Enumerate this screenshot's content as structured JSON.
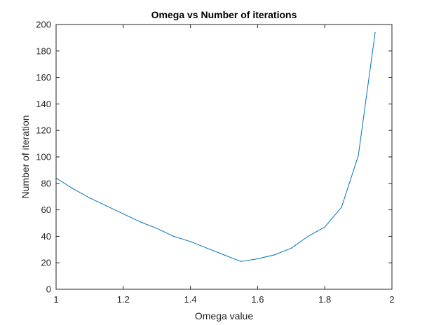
{
  "chart_data": {
    "type": "line",
    "title": "Omega vs Number of iterations",
    "xlabel": "Omega value",
    "ylabel": "Number of iteration",
    "xlim": [
      1,
      2
    ],
    "ylim": [
      0,
      200
    ],
    "xticks": [
      1,
      1.2,
      1.4,
      1.6,
      1.8,
      2
    ],
    "xtick_labels": [
      "1",
      "1.2",
      "1.4",
      "1.6",
      "1.8",
      "2"
    ],
    "yticks": [
      0,
      20,
      40,
      60,
      80,
      100,
      120,
      140,
      160,
      180,
      200
    ],
    "ytick_labels": [
      "0",
      "20",
      "40",
      "60",
      "80",
      "100",
      "120",
      "140",
      "160",
      "180",
      "200"
    ],
    "grid": false,
    "box": true,
    "series": [
      {
        "color": "#0072bd",
        "x": [
          1.0,
          1.05,
          1.1,
          1.15,
          1.2,
          1.25,
          1.3,
          1.35,
          1.4,
          1.45,
          1.5,
          1.55,
          1.6,
          1.65,
          1.7,
          1.75,
          1.8,
          1.85,
          1.9,
          1.95
        ],
        "y": [
          84,
          76,
          69,
          63,
          57,
          51,
          46,
          40,
          36,
          31,
          26,
          21,
          23,
          26,
          31,
          40,
          47,
          62,
          101,
          194
        ]
      }
    ]
  }
}
